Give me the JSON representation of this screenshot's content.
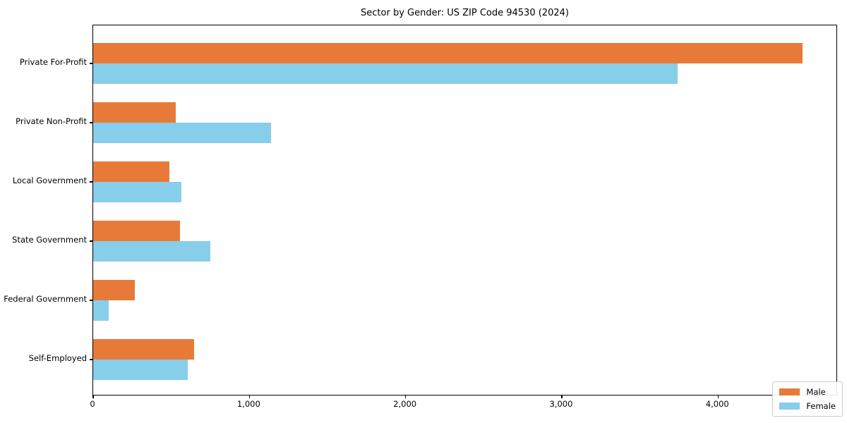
{
  "title": "Sector by Gender: US ZIP Code 94530 (2024)",
  "chart_data": {
    "type": "bar",
    "orientation": "horizontal",
    "title": "Sector by Gender: US ZIP Code 94530 (2024)",
    "categories": [
      "Private For-Profit",
      "Private Non-Profit",
      "Local Government",
      "State Government",
      "Federal Government",
      "Self-Employed"
    ],
    "series": [
      {
        "name": "Male",
        "color": "#E87A39",
        "values": [
          4540,
          530,
          490,
          555,
          265,
          645
        ]
      },
      {
        "name": "Female",
        "color": "#87CEEB",
        "values": [
          3740,
          1140,
          565,
          750,
          100,
          605
        ]
      }
    ],
    "xlabel": "",
    "ylabel": "",
    "xlim": [
      0,
      4767
    ],
    "x_ticks": [
      0,
      1000,
      2000,
      3000,
      4000
    ],
    "x_tick_labels": [
      "0",
      "1,000",
      "2,000",
      "3,000",
      "4,000"
    ],
    "grid": false,
    "legend_position": "lower right"
  },
  "colors": {
    "male": "#E87A39",
    "female": "#87CEEB",
    "spine": "#000000",
    "background": "#FFFFFF",
    "legend_border": "#CCCCCC"
  }
}
